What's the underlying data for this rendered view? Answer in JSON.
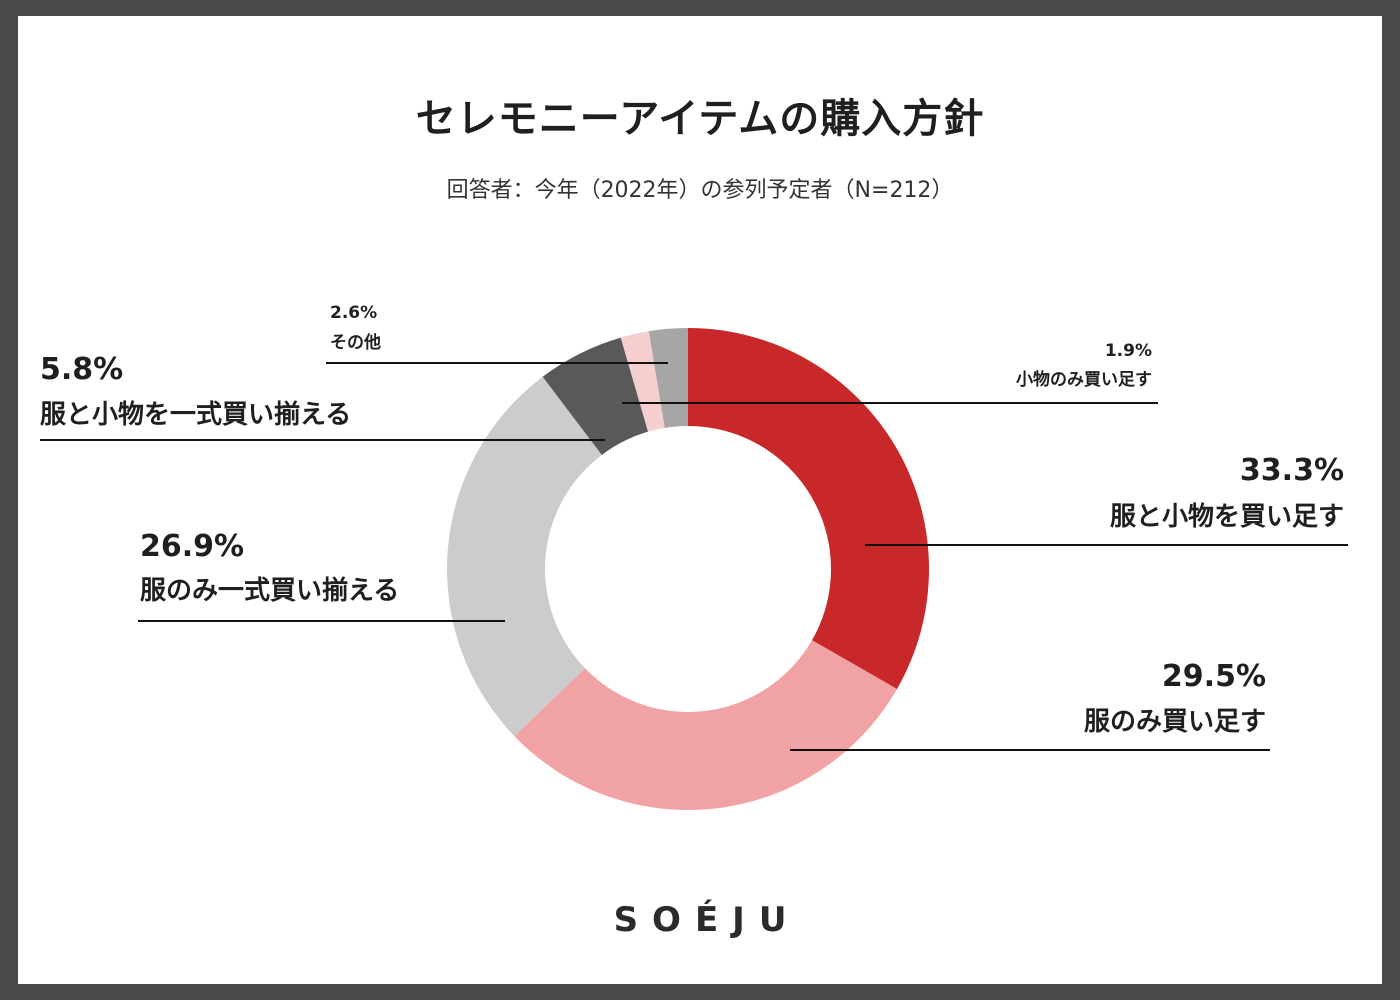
{
  "chart_data": {
    "type": "pie",
    "title": "セレモニーアイテムの購入方針",
    "subtitle": "回答者：今年（2022年）の参列予定者（N=212）",
    "donut": true,
    "slices": [
      {
        "label": "服と小物を買い足す",
        "value": 33.3,
        "pct_label": "33.3%",
        "color": "#c8282a"
      },
      {
        "label": "服のみ買い足す",
        "value": 29.5,
        "pct_label": "29.5%",
        "color": "#f1a2a5"
      },
      {
        "label": "服のみ一式買い揃える",
        "value": 26.9,
        "pct_label": "26.9%",
        "color": "#cccccc"
      },
      {
        "label": "服と小物を一式買い揃える",
        "value": 5.8,
        "pct_label": "5.8%",
        "color": "#595959"
      },
      {
        "label": "小物のみ買い足す",
        "value": 1.9,
        "pct_label": "1.9%",
        "color": "#f5cfd0"
      },
      {
        "label": "その他",
        "value": 2.6,
        "pct_label": "2.6%",
        "color": "#a6a6a6"
      }
    ]
  },
  "brand": "SOÉJU"
}
